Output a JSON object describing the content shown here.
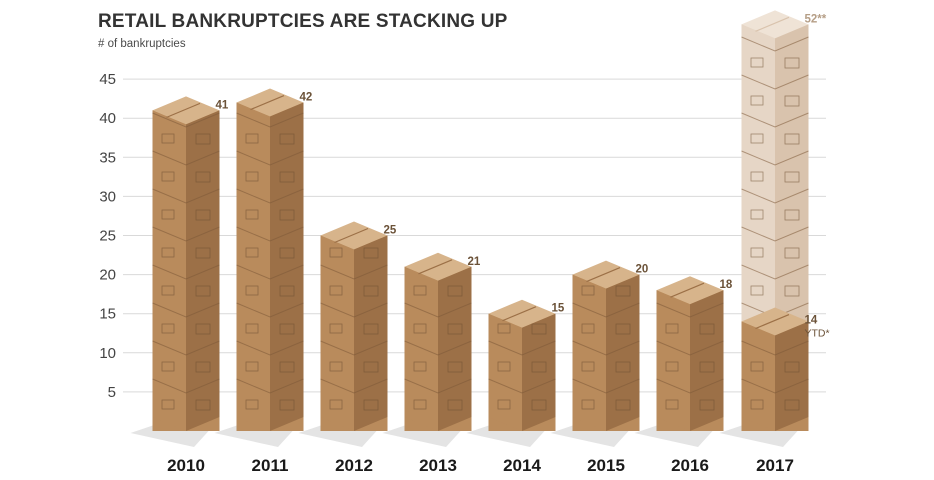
{
  "title": "RETAIL BANKRUPTCIES ARE STACKING UP",
  "subtitle": "# of bankruptcies",
  "chart_data": {
    "type": "bar",
    "title": "RETAIL BANKRUPTCIES ARE STACKING UP",
    "ylabel": "# of bankruptcies",
    "xlabel": "",
    "categories": [
      "2010",
      "2011",
      "2012",
      "2013",
      "2014",
      "2015",
      "2016",
      "2017"
    ],
    "series": [
      {
        "values": [
          41,
          42,
          25,
          21,
          15,
          20,
          18,
          14
        ]
      }
    ],
    "projected": {
      "category": "2017",
      "value": 52,
      "label": "52**"
    },
    "value_labels": [
      "41",
      "42",
      "25",
      "21",
      "15",
      "20",
      "18",
      "14"
    ],
    "value_sublabels": [
      "",
      "",
      "",
      "",
      "",
      "",
      "",
      "YTD*"
    ],
    "yticks": [
      5,
      10,
      15,
      20,
      25,
      30,
      35,
      40,
      45
    ],
    "ylim": [
      0,
      45
    ],
    "grid": true,
    "colors": {
      "box_front": "#b98b5c",
      "box_side": "#9c7047",
      "box_top": "#d7b48b",
      "box_projected": "#e6d6c6",
      "grid": "#d9d9d9",
      "shadow": "#e4e4e4"
    }
  }
}
